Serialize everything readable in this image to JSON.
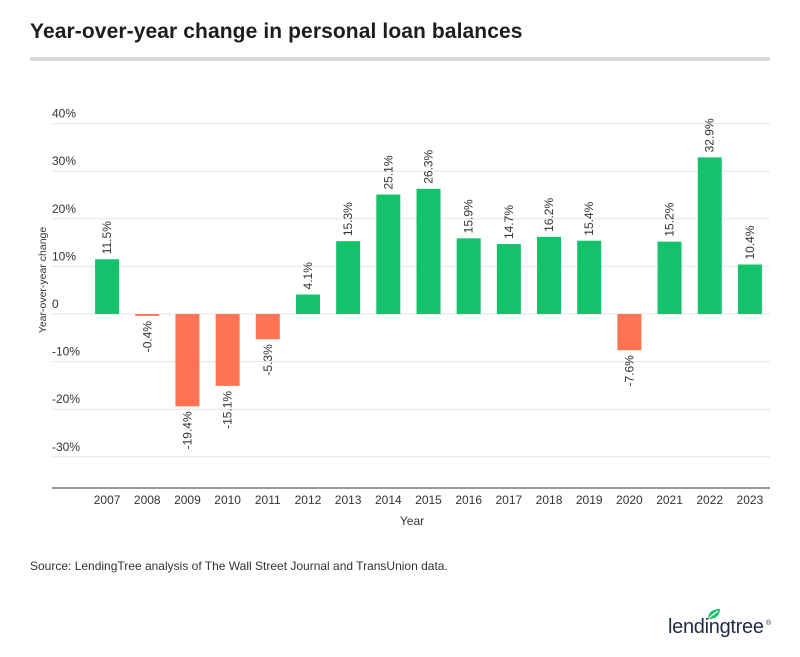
{
  "title": "Year-over-year change in personal loan balances",
  "source": "Source: LendingTree analysis of The Wall Street Journal and TransUnion data.",
  "logo": {
    "text": "lendingtree",
    "registered": "®",
    "icon": "leaf-icon"
  },
  "colors": {
    "positive": "#13c26b",
    "negative": "#ff7353",
    "grid": "#e6e6e6",
    "axis": "#333333",
    "logo_leaf": "#13c26b"
  },
  "chart_data": {
    "type": "bar",
    "categories": [
      "2007",
      "2008",
      "2009",
      "2010",
      "2011",
      "2012",
      "2013",
      "2014",
      "2015",
      "2016",
      "2017",
      "2018",
      "2019",
      "2020",
      "2021",
      "2022",
      "2023"
    ],
    "values": [
      11.5,
      -0.4,
      -19.4,
      -15.1,
      -5.3,
      4.1,
      15.3,
      25.1,
      26.3,
      15.9,
      14.7,
      16.2,
      15.4,
      -7.6,
      15.2,
      32.9,
      10.4
    ],
    "data_labels": [
      "11.5%",
      "-0.4%",
      "-19.4%",
      "-15.1%",
      "-5.3%",
      "4.1%",
      "15.3%",
      "25.1%",
      "26.3%",
      "15.9%",
      "14.7%",
      "16.2%",
      "15.4%",
      "-7.6%",
      "15.2%",
      "32.9%",
      "10.4%"
    ],
    "xlabel": "Year",
    "ylabel": "Year-over-year change",
    "ylim": [
      -36,
      40
    ],
    "yticks": [
      40,
      30,
      20,
      10,
      0,
      -10,
      -20,
      -30
    ],
    "ytick_labels": [
      "40%",
      "30%",
      "20%",
      "10%",
      "0",
      "-10%",
      "-20%",
      "-30%"
    ],
    "grid": true
  }
}
